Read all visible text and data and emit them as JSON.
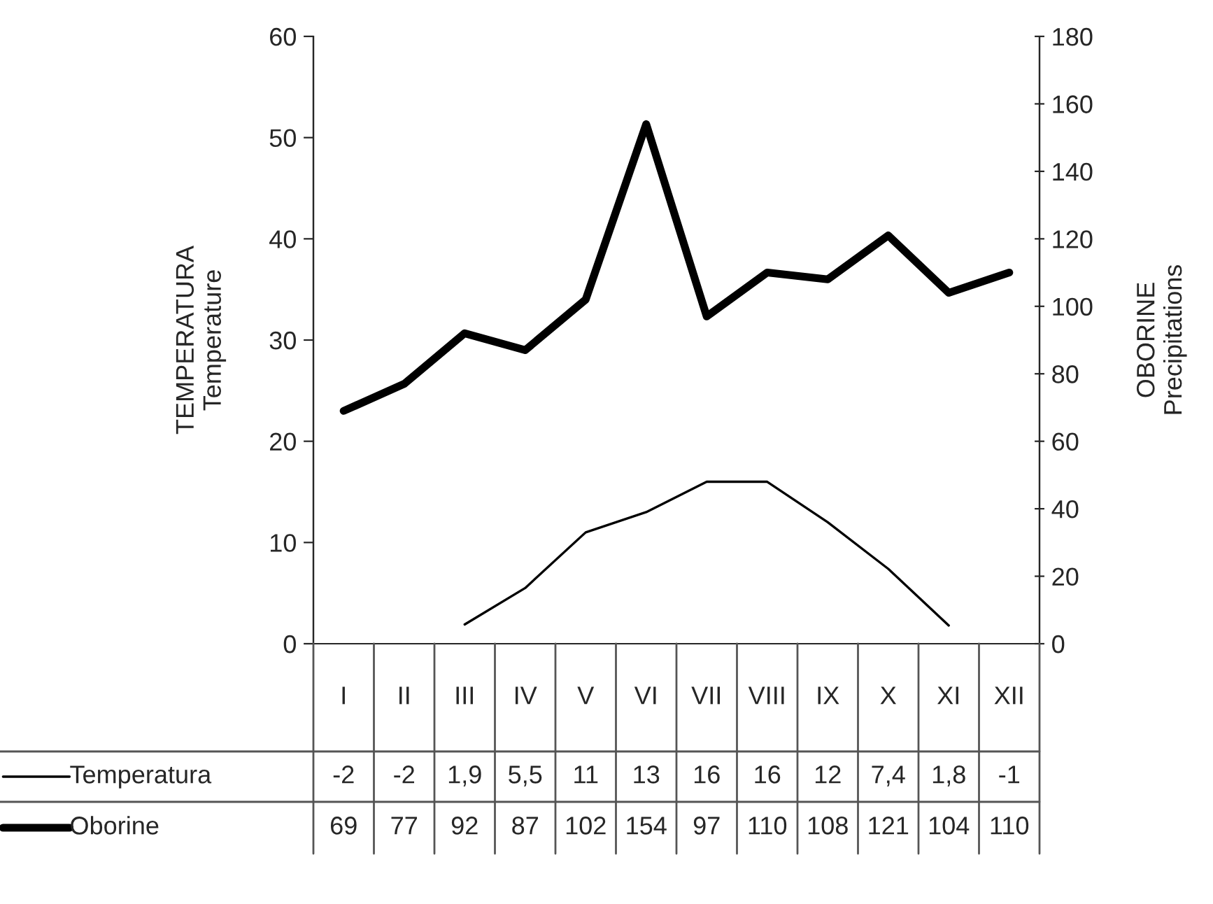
{
  "chart_data": {
    "type": "line",
    "ylabel": "TEMPERATURA\nTemperature",
    "y2label": "OBORINE\nPrecipitations",
    "categories": [
      "I",
      "II",
      "III",
      "IV",
      "V",
      "VI",
      "VII",
      "VIII",
      "IX",
      "X",
      "XI",
      "XII"
    ],
    "series": [
      {
        "name": "Temperatura",
        "color": "#000000",
        "values": [
          null,
          null,
          1.9,
          5.5,
          11,
          13,
          16,
          16,
          12,
          7.4,
          1.8,
          null
        ],
        "value_labels": [
          "-2",
          "-2",
          "1,9",
          "5,5",
          "11",
          "13",
          "16",
          "16",
          "12",
          "7,4",
          "1,8",
          "-1"
        ]
      },
      {
        "name": "Oborine",
        "color": "#000000",
        "axis": "y2",
        "values": [
          69,
          77,
          92,
          87,
          102,
          154,
          97,
          110,
          108,
          121,
          104,
          110
        ],
        "value_labels": [
          "69",
          "77",
          "92",
          "87",
          "102",
          "154",
          "97",
          "110",
          "108",
          "121",
          "104",
          "110"
        ]
      }
    ],
    "ylim": [
      0,
      60
    ],
    "yticks": [
      0,
      10,
      20,
      30,
      40,
      50,
      60
    ],
    "y2lim": [
      0,
      180
    ],
    "y2ticks": [
      0,
      20,
      40,
      60,
      80,
      100,
      120,
      140,
      160,
      180
    ],
    "legend": "bottom",
    "grid": false,
    "marker": "none",
    "line_style": "solid"
  }
}
